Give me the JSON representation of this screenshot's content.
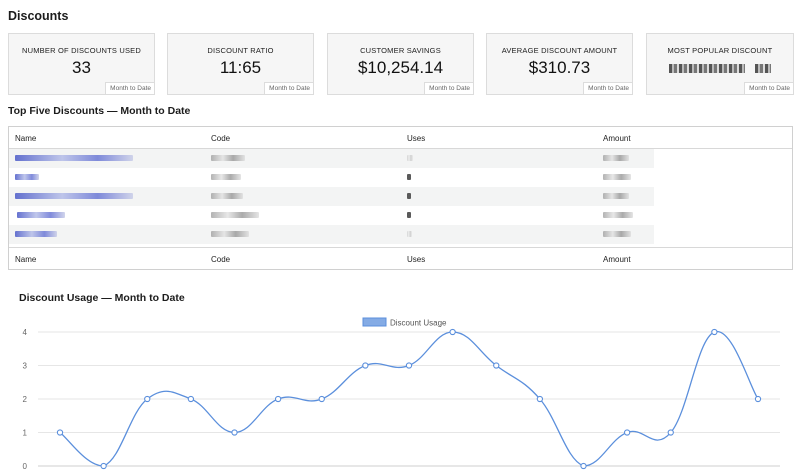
{
  "page": {
    "title": "Discounts"
  },
  "cards": [
    {
      "label": "Number of Discounts Used",
      "value": "33",
      "period": "Month to Date"
    },
    {
      "label": "Discount Ratio",
      "value": "11:65",
      "period": "Month to Date"
    },
    {
      "label": "Customer Savings",
      "value": "$10,254.14",
      "period": "Month to Date"
    },
    {
      "label": "Average Discount Amount",
      "value": "$310.73",
      "period": "Month to Date"
    },
    {
      "label": "Most Popular Discount",
      "value": "",
      "period": "Month to Date"
    }
  ],
  "top_discounts": {
    "title": "Top Five Discounts — Month to Date",
    "columns": [
      "Name",
      "Code",
      "Uses",
      "Amount"
    ]
  },
  "chart_data": {
    "type": "line",
    "title": "Discount Usage — Month to Date",
    "series": [
      {
        "name": "Discount Usage",
        "color": "#5b8fdc",
        "values": [
          1,
          0,
          2,
          2,
          1,
          2,
          2,
          3,
          3,
          4,
          3,
          2,
          0,
          1,
          1,
          4,
          2
        ]
      }
    ],
    "ylim": [
      0,
      4
    ],
    "yticks": [
      "0",
      "1",
      "2",
      "3",
      "4"
    ],
    "grid": true,
    "legend": "top-center"
  }
}
